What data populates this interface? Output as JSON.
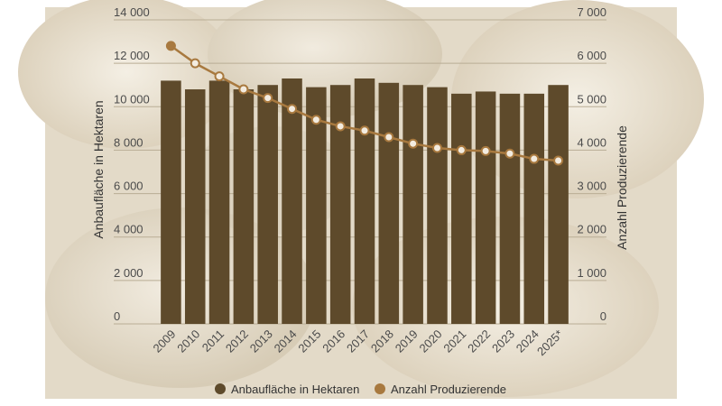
{
  "chart_data": {
    "type": "bar",
    "categories": [
      "2009",
      "2010",
      "2011",
      "2012",
      "2013",
      "2014",
      "2015",
      "2016",
      "2017",
      "2018",
      "2019",
      "2020",
      "2021",
      "2022",
      "2023",
      "2024",
      "2025*"
    ],
    "series": [
      {
        "name": "Anbaufläche in Hektaren",
        "type": "bar",
        "axis": "left",
        "color": "#5e4a2b",
        "values": [
          11200,
          10800,
          11200,
          10800,
          11000,
          11300,
          10900,
          11000,
          11300,
          11100,
          11000,
          10900,
          10600,
          10700,
          10600,
          10600,
          11000
        ]
      },
      {
        "name": "Anzahl Produzierende",
        "type": "line",
        "axis": "right",
        "color": "#a8793f",
        "values": [
          6400,
          6000,
          5700,
          5400,
          5200,
          4950,
          4700,
          4550,
          4450,
          4300,
          4150,
          4050,
          4000,
          3980,
          3920,
          3800,
          3760
        ]
      }
    ],
    "ylabel": "Anbaufläche in Hektaren",
    "ylabel_right": "Anzahl Produzierende",
    "ylim": [
      0,
      14000
    ],
    "ylim_right": [
      0,
      7000
    ],
    "yticks_left": [
      "0",
      "2 000",
      "4 000",
      "6 000",
      "8 000",
      "10 000",
      "12 000",
      "14 000"
    ],
    "yticks_right": [
      "0",
      "1 000",
      "2 000",
      "3 000",
      "4 000",
      "5 000",
      "6 000",
      "7 000"
    ],
    "grid": true,
    "legend_position": "bottom-center",
    "background_color": "#e4dccb"
  }
}
